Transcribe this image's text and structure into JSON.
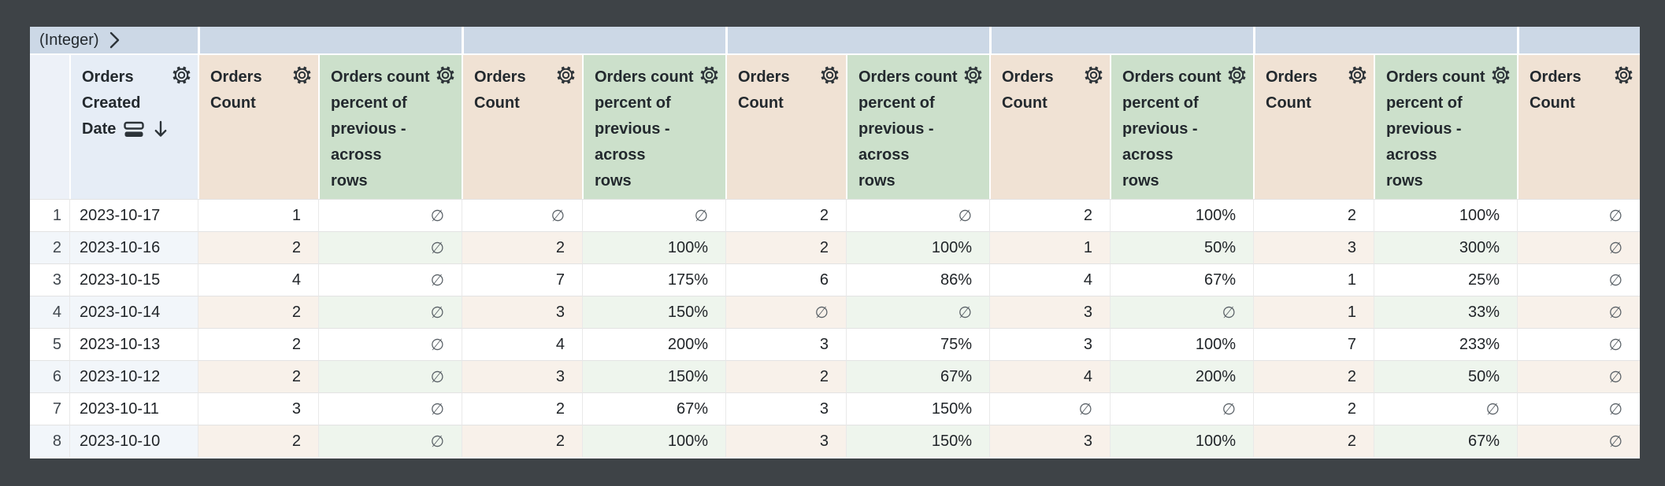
{
  "colors": {
    "canvas_background": "#3e4347",
    "pivot_band_blue": "#ccd8e6",
    "date_header_blue": "#e6edf6",
    "row_number_header_blue": "#edf1f8",
    "count_header_tan": "#f0e2d4",
    "percent_header_green": "#cce0cb",
    "stripe_blue": "#f2f6fa",
    "stripe_tan": "#f8f1ea",
    "stripe_green": "#eef5ed",
    "header_text": "#23292e",
    "data_text": "#212529",
    "null_text": "#5a6167"
  },
  "pivot": {
    "field_label": "(Integer)",
    "expand_icon": "chevron-right-icon",
    "group_values": [
      "",
      "",
      "",
      "",
      "",
      ""
    ]
  },
  "table": {
    "row_number_header": "",
    "date_column": {
      "title_lines": [
        "Orders",
        "Created",
        "Date"
      ],
      "icons": [
        "subtotal-icon",
        "sort-desc-arrow-icon"
      ],
      "gear_icon": "gear-icon"
    },
    "measure_headers": {
      "count_title_lines": [
        "Orders",
        "Count"
      ],
      "percent_title_lines": [
        "Orders count",
        "percent of",
        "previous -",
        "across",
        "rows"
      ],
      "gear_icon": "gear-icon"
    },
    "column_order": [
      "count",
      "percent",
      "count",
      "percent",
      "count",
      "percent",
      "count",
      "percent",
      "count",
      "percent",
      "count"
    ],
    "null_symbol": "∅",
    "rows": [
      {
        "num": "1",
        "date": "2023-10-17",
        "values": [
          "1",
          "∅",
          "∅",
          "∅",
          "2",
          "∅",
          "2",
          "100%",
          "2",
          "100%",
          "∅"
        ]
      },
      {
        "num": "2",
        "date": "2023-10-16",
        "values": [
          "2",
          "∅",
          "2",
          "100%",
          "2",
          "100%",
          "1",
          "50%",
          "3",
          "300%",
          "∅"
        ]
      },
      {
        "num": "3",
        "date": "2023-10-15",
        "values": [
          "4",
          "∅",
          "7",
          "175%",
          "6",
          "86%",
          "4",
          "67%",
          "1",
          "25%",
          "∅"
        ]
      },
      {
        "num": "4",
        "date": "2023-10-14",
        "values": [
          "2",
          "∅",
          "3",
          "150%",
          "∅",
          "∅",
          "3",
          "∅",
          "1",
          "33%",
          "∅"
        ]
      },
      {
        "num": "5",
        "date": "2023-10-13",
        "values": [
          "2",
          "∅",
          "4",
          "200%",
          "3",
          "75%",
          "3",
          "100%",
          "7",
          "233%",
          "∅"
        ]
      },
      {
        "num": "6",
        "date": "2023-10-12",
        "values": [
          "2",
          "∅",
          "3",
          "150%",
          "2",
          "67%",
          "4",
          "200%",
          "2",
          "50%",
          "∅"
        ]
      },
      {
        "num": "7",
        "date": "2023-10-11",
        "values": [
          "3",
          "∅",
          "2",
          "67%",
          "3",
          "150%",
          "∅",
          "∅",
          "2",
          "∅",
          "∅"
        ]
      },
      {
        "num": "8",
        "date": "2023-10-10",
        "values": [
          "2",
          "∅",
          "2",
          "100%",
          "3",
          "150%",
          "3",
          "100%",
          "2",
          "67%",
          "∅"
        ]
      }
    ]
  }
}
